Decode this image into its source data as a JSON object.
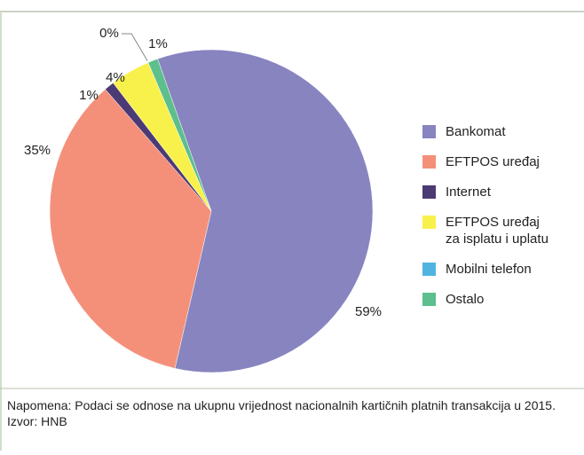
{
  "chart_data": {
    "type": "pie",
    "categories": [
      "Bankomat",
      "EFTPOS uređaj",
      "Internet",
      "EFTPOS uređaj za isplatu i uplatu",
      "Mobilni telefon",
      "Ostalo"
    ],
    "values": [
      59,
      35,
      1,
      4,
      0,
      1
    ],
    "value_labels": [
      "59%",
      "35%",
      "1%",
      "4%",
      "0%",
      "1%"
    ],
    "colors": [
      "#8884c0",
      "#f4907a",
      "#4b3a74",
      "#f9f14b",
      "#4fb5e0",
      "#5dbf8c"
    ],
    "legend": "right",
    "note": "Napomena: Podaci se odnose na ukupnu vrijednost nacionalnih karti&#269;nih platnih transakcija u 2015.",
    "source": "Izvor: HNB"
  }
}
